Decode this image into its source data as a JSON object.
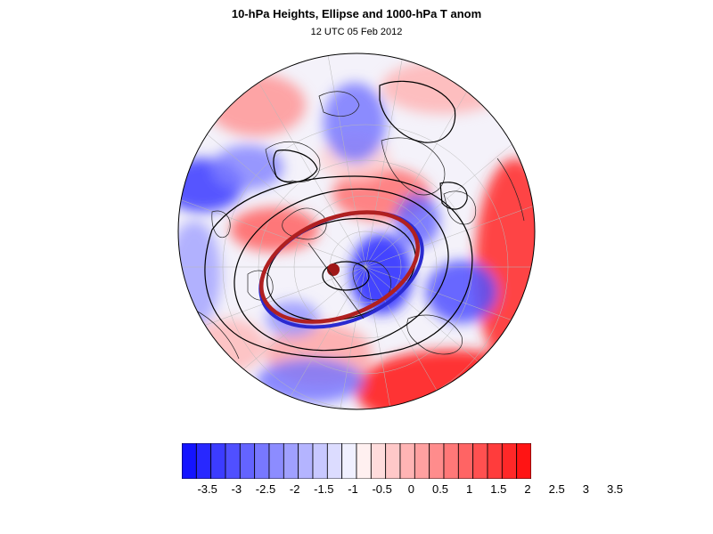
{
  "title": "10-hPa Heights, Ellipse and 1000-hPa T anom",
  "subtitle": "12 UTC 05 Feb 2012",
  "colorbar": {
    "colors": [
      "#1414ff",
      "#2828ff",
      "#3c3cff",
      "#5050ff",
      "#6464ff",
      "#7878ff",
      "#8c8cff",
      "#a0a0ff",
      "#b4b4ff",
      "#c8c8ff",
      "#dcdcff",
      "#f0f0ff",
      "#fff0f0",
      "#ffdcdc",
      "#ffc8c8",
      "#ffb4b4",
      "#ffa0a0",
      "#ff8c8c",
      "#ff7878",
      "#ff6464",
      "#ff5050",
      "#ff3c3c",
      "#ff2828",
      "#ff1414"
    ],
    "tick_labels": [
      "-3.5",
      "-3",
      "-2.5",
      "-2",
      "-1.5",
      "-1",
      "-0.5",
      "0",
      "0.5",
      "1",
      "1.5",
      "2",
      "2.5",
      "3",
      "3.5"
    ]
  },
  "map": {
    "projection": "north-polar-stereographic",
    "ellipse_colors": [
      "#2a2ad0",
      "#b02020"
    ],
    "center_marker_color": "#a01818"
  }
}
